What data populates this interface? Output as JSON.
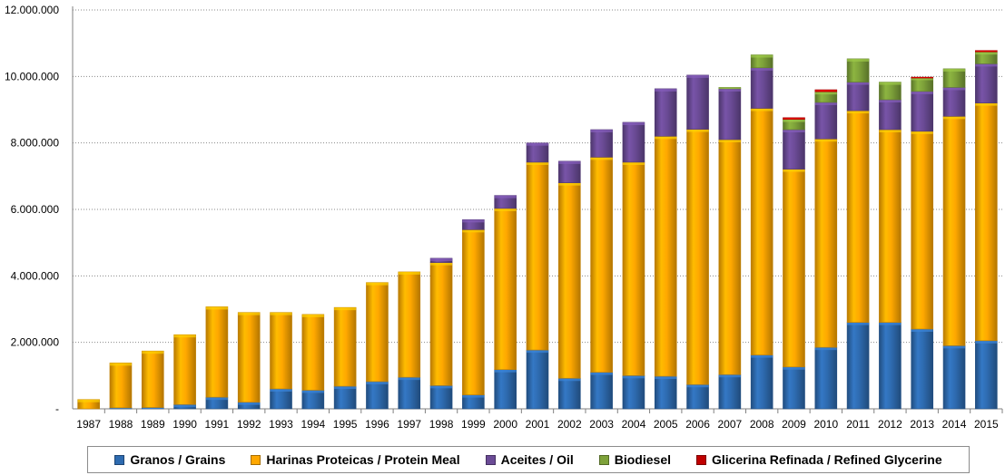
{
  "chart_data": {
    "type": "bar",
    "stacked": true,
    "title": "",
    "xlabel": "",
    "ylabel": "",
    "ylim": [
      0,
      12000000
    ],
    "yticks": [
      0,
      2000000,
      4000000,
      6000000,
      8000000,
      10000000,
      12000000
    ],
    "ytick_labels": [
      "-",
      "2.000.000",
      "4.000.000",
      "6.000.000",
      "8.000.000",
      "10.000.000",
      "12.000.000"
    ],
    "grid": "horizontal dotted",
    "legend_position": "bottom",
    "categories": [
      "1987",
      "1988",
      "1989",
      "1990",
      "1991",
      "1992",
      "1993",
      "1994",
      "1995",
      "1996",
      "1997",
      "1998",
      "1999",
      "2000",
      "2001",
      "2002",
      "2003",
      "2004",
      "2005",
      "2006",
      "2007",
      "2008",
      "2009",
      "2010",
      "2011",
      "2012",
      "2013",
      "2014",
      "2015"
    ],
    "series": [
      {
        "name": "Granos / Grains",
        "color": "#2e6bb0",
        "values": [
          0,
          30000,
          40000,
          130000,
          350000,
          200000,
          600000,
          560000,
          680000,
          820000,
          950000,
          700000,
          420000,
          1180000,
          1770000,
          920000,
          1100000,
          1000000,
          980000,
          730000,
          1030000,
          1620000,
          1260000,
          1850000,
          2600000,
          2600000,
          2400000,
          1900000,
          2050000
        ]
      },
      {
        "name": "Harinas Proteicas / Protein Meal",
        "color": "#ffa800",
        "values": [
          280000,
          1350000,
          1700000,
          2100000,
          2720000,
          2700000,
          2300000,
          2280000,
          2370000,
          2980000,
          3170000,
          3700000,
          4970000,
          4850000,
          5650000,
          5880000,
          6470000,
          6420000,
          7220000,
          7680000,
          7070000,
          7420000,
          5950000,
          6270000,
          6370000,
          5800000,
          5950000,
          6900000,
          7150000
        ]
      },
      {
        "name": "Aceites / Oil",
        "color": "#6b4b96",
        "values": [
          0,
          0,
          0,
          0,
          0,
          0,
          0,
          0,
          0,
          0,
          0,
          130000,
          300000,
          390000,
          580000,
          650000,
          830000,
          1200000,
          1430000,
          1630000,
          1530000,
          1220000,
          1190000,
          1100000,
          860000,
          900000,
          1200000,
          870000,
          1180000
        ]
      },
      {
        "name": "Biodiesel",
        "color": "#7ea23a",
        "values": [
          0,
          0,
          0,
          0,
          0,
          0,
          0,
          0,
          0,
          0,
          0,
          0,
          0,
          0,
          0,
          0,
          0,
          0,
          0,
          0,
          40000,
          390000,
          310000,
          320000,
          700000,
          530000,
          420000,
          560000,
          360000
        ]
      },
      {
        "name": "Glicerina Refinada / Refined Glycerine",
        "color": "#c00000",
        "values": [
          0,
          0,
          0,
          0,
          0,
          0,
          0,
          0,
          0,
          0,
          0,
          0,
          0,
          0,
          0,
          0,
          0,
          0,
          0,
          0,
          0,
          0,
          50000,
          60000,
          0,
          0,
          10000,
          0,
          40000
        ]
      }
    ]
  }
}
